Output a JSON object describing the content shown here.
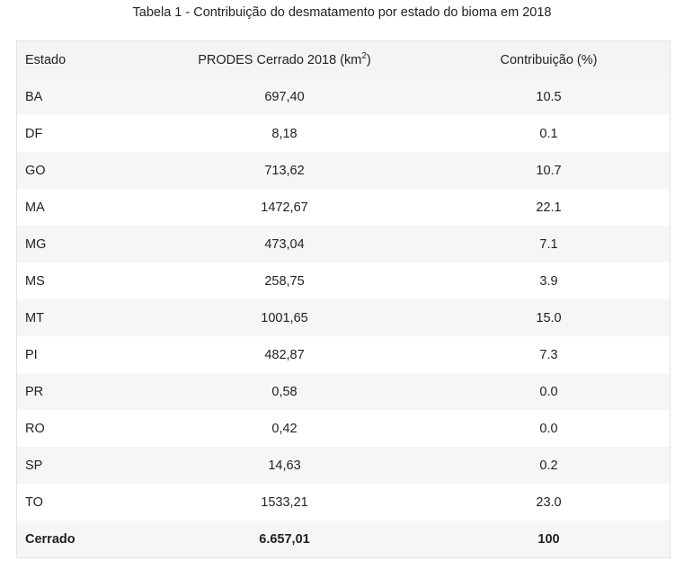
{
  "caption": "Tabela 1 - Contribuição do desmatamento por estado do bioma em 2018",
  "headers": {
    "estado": "Estado",
    "prodes_prefix": "PRODES Cerrado 2018 (km",
    "prodes_sup": "2",
    "prodes_suffix": ")",
    "contribuicao": "Contribuição (%)"
  },
  "rows": [
    {
      "estado": "BA",
      "prodes": "697,40",
      "contribuicao": "10.5"
    },
    {
      "estado": "DF",
      "prodes": "8,18",
      "contribuicao": "0.1"
    },
    {
      "estado": "GO",
      "prodes": "713,62",
      "contribuicao": "10.7"
    },
    {
      "estado": "MA",
      "prodes": "1472,67",
      "contribuicao": "22.1"
    },
    {
      "estado": "MG",
      "prodes": "473,04",
      "contribuicao": "7.1"
    },
    {
      "estado": "MS",
      "prodes": "258,75",
      "contribuicao": "3.9"
    },
    {
      "estado": "MT",
      "prodes": "1001,65",
      "contribuicao": "15.0"
    },
    {
      "estado": "PI",
      "prodes": "482,87",
      "contribuicao": "7.3"
    },
    {
      "estado": "PR",
      "prodes": "0,58",
      "contribuicao": "0.0"
    },
    {
      "estado": "RO",
      "prodes": "0,42",
      "contribuicao": "0.0"
    },
    {
      "estado": "SP",
      "prodes": "14,63",
      "contribuicao": "0.2"
    },
    {
      "estado": "TO",
      "prodes": "1533,21",
      "contribuicao": "23.0"
    }
  ],
  "total": {
    "estado": "Cerrado",
    "prodes": "6.657,01",
    "contribuicao": "100"
  }
}
